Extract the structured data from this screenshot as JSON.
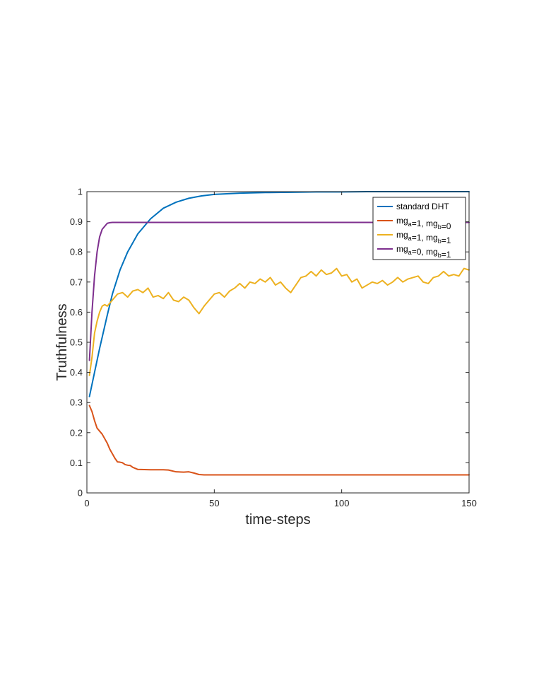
{
  "chart_data": {
    "type": "line",
    "xlabel": "time-steps",
    "ylabel": "Truthfulness",
    "xlim": [
      0,
      150
    ],
    "ylim": [
      0,
      1
    ],
    "xticks": [
      0,
      50,
      100,
      150
    ],
    "yticks": [
      0,
      0.1,
      0.2,
      0.3,
      0.4,
      0.5,
      0.6,
      0.7,
      0.8,
      0.9,
      1
    ],
    "grid": false,
    "legend_position": "top-right",
    "series": [
      {
        "name": "standard DHT",
        "color": "#0072BD",
        "x": [
          1,
          3,
          5,
          8,
          10,
          13,
          16,
          20,
          25,
          30,
          35,
          40,
          45,
          50,
          60,
          70,
          80,
          90,
          100,
          110,
          120,
          130,
          140,
          150
        ],
        "y": [
          0.32,
          0.4,
          0.48,
          0.59,
          0.66,
          0.74,
          0.8,
          0.86,
          0.91,
          0.945,
          0.965,
          0.978,
          0.986,
          0.991,
          0.995,
          0.997,
          0.998,
          0.999,
          0.999,
          1.0,
          1.0,
          1.0,
          1.0,
          1.0
        ]
      },
      {
        "name": "mg_a=1, mg_b=0",
        "legend_parts": [
          [
            "mg",
            "a",
            "=1, mg",
            "b",
            "=0"
          ]
        ],
        "color": "#D95319",
        "x": [
          1,
          2,
          3,
          4,
          5,
          6,
          7,
          8,
          9,
          10,
          11,
          12,
          13,
          14,
          15,
          16,
          17,
          18,
          20,
          25,
          30,
          32,
          35,
          38,
          40,
          42,
          44,
          46,
          50,
          55,
          60,
          70,
          80,
          90,
          100,
          110,
          120,
          130,
          140,
          150
        ],
        "y": [
          0.29,
          0.27,
          0.24,
          0.215,
          0.205,
          0.195,
          0.18,
          0.165,
          0.145,
          0.13,
          0.115,
          0.103,
          0.102,
          0.1,
          0.094,
          0.092,
          0.091,
          0.085,
          0.078,
          0.077,
          0.077,
          0.076,
          0.07,
          0.069,
          0.07,
          0.066,
          0.061,
          0.06,
          0.06,
          0.06,
          0.06,
          0.06,
          0.06,
          0.06,
          0.06,
          0.06,
          0.06,
          0.06,
          0.06,
          0.06
        ]
      },
      {
        "name": "mg_a=1, mg_b=1",
        "color": "#EDB120",
        "x": [
          1,
          2,
          3,
          4,
          5,
          6,
          7,
          8,
          10,
          12,
          14,
          16,
          18,
          20,
          22,
          24,
          26,
          28,
          30,
          32,
          34,
          36,
          38,
          40,
          42,
          44,
          46,
          48,
          50,
          52,
          54,
          56,
          58,
          60,
          62,
          64,
          66,
          68,
          70,
          72,
          74,
          76,
          78,
          80,
          82,
          84,
          86,
          88,
          90,
          92,
          94,
          96,
          98,
          100,
          102,
          104,
          106,
          108,
          110,
          112,
          114,
          116,
          118,
          120,
          122,
          124,
          126,
          128,
          130,
          132,
          134,
          136,
          138,
          140,
          142,
          144,
          146,
          148,
          150
        ],
        "y": [
          0.39,
          0.45,
          0.53,
          0.57,
          0.6,
          0.62,
          0.625,
          0.62,
          0.64,
          0.66,
          0.665,
          0.65,
          0.67,
          0.675,
          0.665,
          0.68,
          0.65,
          0.655,
          0.645,
          0.665,
          0.64,
          0.635,
          0.65,
          0.64,
          0.615,
          0.595,
          0.62,
          0.64,
          0.66,
          0.665,
          0.65,
          0.67,
          0.68,
          0.695,
          0.68,
          0.7,
          0.695,
          0.71,
          0.7,
          0.715,
          0.69,
          0.7,
          0.68,
          0.665,
          0.69,
          0.715,
          0.72,
          0.735,
          0.72,
          0.74,
          0.725,
          0.73,
          0.745,
          0.72,
          0.725,
          0.7,
          0.71,
          0.68,
          0.69,
          0.7,
          0.695,
          0.705,
          0.69,
          0.7,
          0.715,
          0.7,
          0.71,
          0.715,
          0.72,
          0.7,
          0.695,
          0.715,
          0.72,
          0.735,
          0.72,
          0.725,
          0.72,
          0.745,
          0.74
        ]
      },
      {
        "name": "mg_a=0, mg_b=1",
        "color": "#7E2F8E",
        "x": [
          1,
          2,
          3,
          4,
          5,
          6,
          7,
          8,
          9,
          10,
          12,
          15,
          20,
          25,
          30,
          40,
          50,
          60,
          70,
          80,
          90,
          100,
          110,
          120,
          130,
          140,
          150
        ],
        "y": [
          0.44,
          0.6,
          0.72,
          0.8,
          0.85,
          0.875,
          0.885,
          0.895,
          0.897,
          0.898,
          0.898,
          0.898,
          0.898,
          0.898,
          0.898,
          0.898,
          0.898,
          0.898,
          0.898,
          0.898,
          0.898,
          0.898,
          0.898,
          0.898,
          0.898,
          0.898,
          0.898
        ]
      }
    ]
  }
}
